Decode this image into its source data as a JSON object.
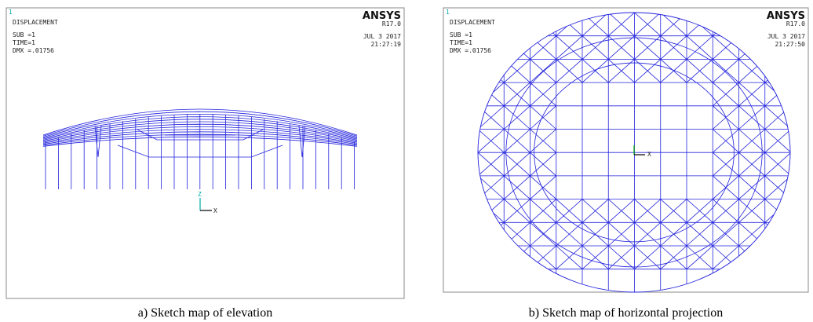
{
  "panels": [
    {
      "window_number": "1",
      "title": "DISPLACEMENT",
      "sub": "SUB =1",
      "time": "TIME=1",
      "dmx": "DMX =.01756",
      "brand": "ANSYS",
      "version": "R17.0",
      "date": "JUL  3 2017",
      "clock": "21:27:19",
      "axes": [
        "Z",
        "X"
      ],
      "caption": "a) Sketch map of elevation"
    },
    {
      "window_number": "1",
      "title": "DISPLACEMENT",
      "sub": "SUB =1",
      "time": "TIME=1",
      "dmx": "DMX =.01756",
      "brand": "ANSYS",
      "version": "R17.0",
      "date": "JUL  3 2017",
      "clock": "21:27:50",
      "axes": [
        "X"
      ],
      "caption": "b) Sketch map of horizontal projection"
    }
  ]
}
